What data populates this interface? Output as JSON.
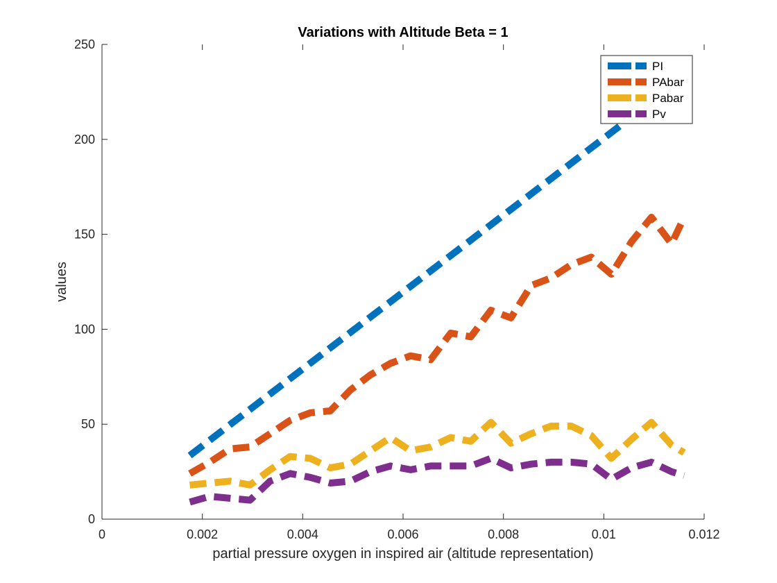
{
  "chart_data": {
    "type": "line",
    "title": "Variations with Altitude Beta = 1",
    "xlabel": "partial pressure oxygen in inspired air (altitude representation)",
    "ylabel": "values",
    "xlim": [
      0,
      0.012
    ],
    "ylim": [
      0,
      250
    ],
    "x_ticks": [
      0,
      0.002,
      0.004,
      0.006,
      0.008,
      0.01,
      0.012
    ],
    "x_tick_labels": [
      "0",
      "0.002",
      "0.004",
      "0.006",
      "0.008",
      "0.01",
      "0.012"
    ],
    "y_ticks": [
      0,
      50,
      100,
      150,
      200,
      250
    ],
    "y_tick_labels": [
      "0",
      "50",
      "100",
      "150",
      "200",
      "250"
    ],
    "grid": false,
    "legend_position": "top-right",
    "line_style": "dashed",
    "series": [
      {
        "name": "PI",
        "color": "#0072BD",
        "x": [
          0.00175,
          0.0116
        ],
        "y": [
          33.5,
          233
        ]
      },
      {
        "name": "PAbar",
        "color": "#D95319",
        "x": [
          0.00175,
          0.00215,
          0.00255,
          0.00295,
          0.00335,
          0.00375,
          0.00415,
          0.00455,
          0.00495,
          0.00535,
          0.00575,
          0.00615,
          0.00655,
          0.00695,
          0.00735,
          0.00775,
          0.00815,
          0.00855,
          0.00895,
          0.00935,
          0.00975,
          0.01015,
          0.01055,
          0.01095,
          0.01135,
          0.0116
        ],
        "y": [
          24,
          30,
          37,
          38,
          45,
          52,
          56,
          57,
          68,
          76,
          82,
          86,
          84,
          98,
          96,
          110,
          106,
          123,
          127,
          134,
          138,
          129,
          146,
          159,
          145,
          159
        ]
      },
      {
        "name": "Pabar",
        "color": "#EDB120",
        "x": [
          0.00175,
          0.00215,
          0.00255,
          0.00295,
          0.00335,
          0.00375,
          0.00415,
          0.00455,
          0.00495,
          0.00535,
          0.00575,
          0.00615,
          0.00655,
          0.00695,
          0.00735,
          0.00775,
          0.00815,
          0.00855,
          0.00895,
          0.00935,
          0.00975,
          0.01015,
          0.01055,
          0.01095,
          0.01135,
          0.0116
        ],
        "y": [
          18,
          19,
          20,
          18,
          26,
          33,
          32,
          27,
          29,
          36,
          43,
          36,
          38,
          43,
          41,
          51,
          40,
          45,
          49,
          49,
          44,
          32,
          42,
          51,
          39,
          35
        ]
      },
      {
        "name": "Pv",
        "color": "#7E2F8E",
        "x": [
          0.00175,
          0.00215,
          0.00255,
          0.00295,
          0.00335,
          0.00375,
          0.00415,
          0.00455,
          0.00495,
          0.00535,
          0.00575,
          0.00615,
          0.00655,
          0.00695,
          0.00735,
          0.00775,
          0.00815,
          0.00855,
          0.00895,
          0.00935,
          0.00975,
          0.01015,
          0.01055,
          0.01095,
          0.01135,
          0.0116
        ],
        "y": [
          9,
          12,
          11,
          10,
          20,
          24,
          22,
          19,
          20,
          25,
          28,
          26,
          28,
          28,
          28,
          32,
          27,
          29,
          30,
          30,
          29,
          21,
          27,
          30,
          25,
          23
        ]
      }
    ]
  }
}
